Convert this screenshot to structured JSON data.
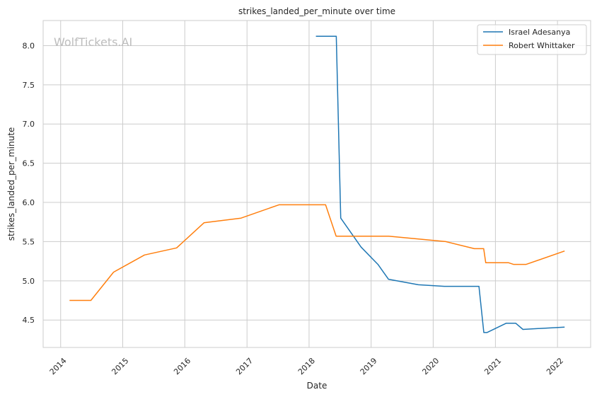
{
  "chart_data": {
    "type": "line",
    "title": "strikes_landed_per_minute over time",
    "xlabel": "Date",
    "ylabel": "strikes_landed_per_minute",
    "watermark": "WolfTickets.AI",
    "x_ticks": [
      "2014",
      "2015",
      "2016",
      "2017",
      "2018",
      "2019",
      "2020",
      "2021",
      "2022"
    ],
    "y_ticks": [
      "4.5",
      "5.0",
      "5.5",
      "6.0",
      "6.5",
      "7.0",
      "7.5",
      "8.0"
    ],
    "xlim": [
      "2013-09-20",
      "2022-07-15"
    ],
    "ylim": [
      4.15,
      8.32
    ],
    "grid": true,
    "legend_position": "top-right",
    "series": [
      {
        "name": "Israel Adesanya",
        "color": "#1f77b4",
        "points": [
          [
            "2018-02-10",
            8.12
          ],
          [
            "2018-06-10",
            8.12
          ],
          [
            "2018-07-06",
            5.8
          ],
          [
            "2018-11-03",
            5.43
          ],
          [
            "2019-02-10",
            5.21
          ],
          [
            "2019-04-13",
            5.02
          ],
          [
            "2019-10-06",
            4.95
          ],
          [
            "2020-03-07",
            4.93
          ],
          [
            "2020-09-26",
            4.93
          ],
          [
            "2020-10-25",
            4.34
          ],
          [
            "2020-11-12",
            4.34
          ],
          [
            "2021-03-06",
            4.46
          ],
          [
            "2021-04-30",
            4.46
          ],
          [
            "2021-06-12",
            4.38
          ],
          [
            "2022-02-12",
            4.41
          ]
        ]
      },
      {
        "name": "Robert Whittaker",
        "color": "#ff7f0e",
        "points": [
          [
            "2014-02-22",
            4.75
          ],
          [
            "2014-06-28",
            4.75
          ],
          [
            "2014-11-08",
            5.11
          ],
          [
            "2015-05-09",
            5.33
          ],
          [
            "2015-11-14",
            5.42
          ],
          [
            "2016-04-23",
            5.74
          ],
          [
            "2016-11-27",
            5.8
          ],
          [
            "2017-07-08",
            5.97
          ],
          [
            "2018-04-08",
            5.97
          ],
          [
            "2018-06-09",
            5.57
          ],
          [
            "2019-04-14",
            5.57
          ],
          [
            "2020-03-15",
            5.5
          ],
          [
            "2020-08-30",
            5.41
          ],
          [
            "2020-10-24",
            5.41
          ],
          [
            "2020-11-05",
            5.23
          ],
          [
            "2021-03-20",
            5.23
          ],
          [
            "2021-04-17",
            5.21
          ],
          [
            "2021-07-01",
            5.21
          ],
          [
            "2022-02-12",
            5.38
          ]
        ]
      }
    ]
  }
}
